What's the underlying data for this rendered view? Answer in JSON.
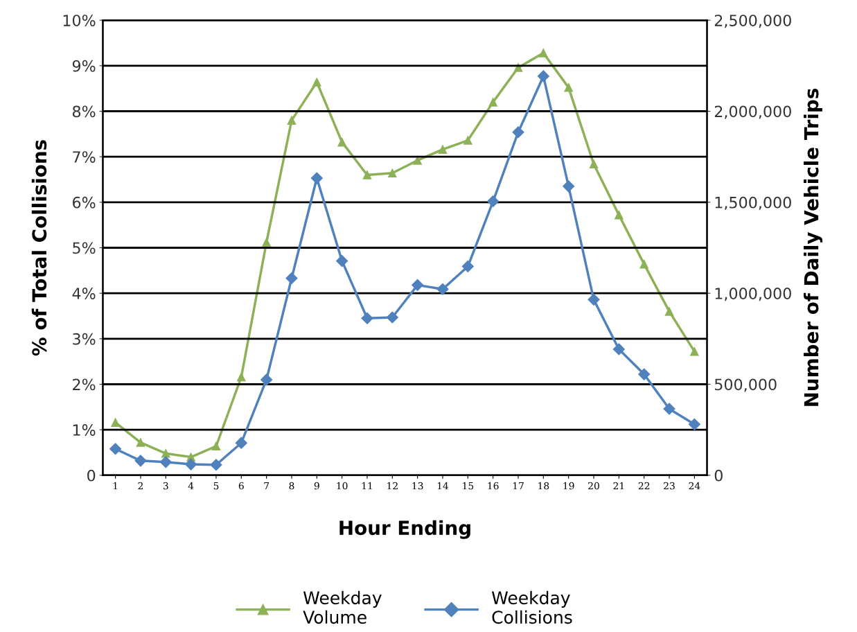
{
  "chart_data": {
    "type": "line",
    "xlabel": "Hour Ending",
    "ylabel": "% of Total Collisions",
    "y2label": "Number of Daily Vehicle Trips",
    "categories": [
      "1",
      "2",
      "3",
      "4",
      "5",
      "6",
      "7",
      "8",
      "9",
      "10",
      "11",
      "12",
      "13",
      "14",
      "15",
      "16",
      "17",
      "18",
      "19",
      "20",
      "21",
      "22",
      "23",
      "24"
    ],
    "series": [
      {
        "name": "Weekday\nVolume",
        "color": "#8db157",
        "marker": "triangle",
        "axis": "y2",
        "values": [
          290000,
          180000,
          120000,
          100000,
          160000,
          540000,
          1280000,
          1950000,
          2160000,
          1830000,
          1650000,
          1660000,
          1730000,
          1790000,
          1840000,
          2050000,
          2240000,
          2320000,
          2130000,
          1710000,
          1430000,
          1160000,
          900000,
          680000
        ]
      },
      {
        "name": "Weekday\nCollisions",
        "color": "#4f81bd",
        "marker": "diamond",
        "values": [
          0.58,
          0.32,
          0.29,
          0.24,
          0.23,
          0.71,
          2.1,
          4.33,
          6.53,
          4.71,
          3.45,
          3.47,
          4.18,
          4.09,
          4.59,
          6.02,
          7.54,
          8.77,
          6.35,
          3.86,
          2.77,
          2.22,
          1.46,
          1.12
        ]
      }
    ],
    "ylim": [
      0,
      10
    ],
    "yticks": [
      0,
      {
        "value": 1,
        "label": "1%"
      },
      {
        "value": 2,
        "label": "2%"
      },
      {
        "value": 3,
        "label": "3%"
      },
      {
        "value": 4,
        "label": "4%"
      },
      {
        "value": 5,
        "label": "5%"
      },
      {
        "value": 6,
        "label": "6%"
      },
      {
        "value": 7,
        "label": "7%"
      },
      {
        "value": 8,
        "label": "8%"
      },
      {
        "value": 9,
        "label": "9%"
      },
      {
        "value": 10,
        "label": "10%"
      }
    ],
    "y2lim": [
      0,
      2500000
    ],
    "y2ticks": [
      0,
      {
        "value": 500000,
        "label": "500,000"
      },
      {
        "value": 1000000,
        "label": "1,000,000"
      },
      {
        "value": 1500000,
        "label": "1,500,000"
      },
      {
        "value": 2000000,
        "label": "2,000,000"
      },
      {
        "value": 2500000,
        "label": "2,500,000"
      }
    ],
    "grid": "y",
    "legend": "bottom",
    "line_style": "solid"
  }
}
